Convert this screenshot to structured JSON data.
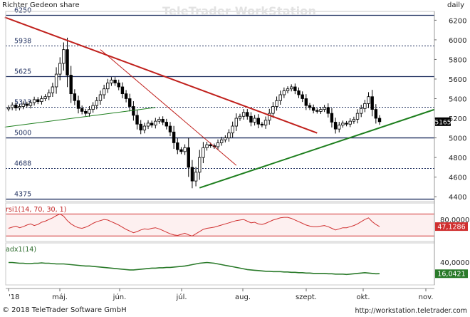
{
  "header": {
    "title": "Richter Gedeon share",
    "interval": "daily",
    "watermark": "TeleTrader WorkStation"
  },
  "footer": {
    "copyright": "© 2018 TeleTrader Software GmbH",
    "url": "http://workstation.teletrader.com"
  },
  "colors": {
    "candle": "#000000",
    "trend_down": "#c0201c",
    "trend_up": "#1e7f1e",
    "level_line": "#1f2f5f",
    "rsi": "#d03030",
    "adx": "#2a7a2a",
    "current_price_box": "#000000",
    "rsi_value_box": "#d03030",
    "adx_value_box": "#2a7a2a"
  },
  "chart_data": [
    {
      "type": "candlestick",
      "title": "Richter Gedeon share",
      "x_tick_labels": [
        "'18",
        "máj.",
        "jún.",
        "júl.",
        "aug.",
        "szept.",
        "okt.",
        "nov."
      ],
      "y_axis_labels": [
        "6200",
        "6000",
        "5800",
        "5600",
        "5400",
        "5200",
        "5000",
        "4800",
        "4600",
        "4400"
      ],
      "ylim": [
        4350,
        6290
      ],
      "level_labels": [
        "6250",
        "5938",
        "5625",
        "5313",
        "5000",
        "4688",
        "4375"
      ],
      "levels": [
        6250,
        5938,
        5625,
        5313,
        5000,
        4688,
        4375
      ],
      "current_price_label": "5165",
      "current_price": 5165,
      "trendlines": [
        {
          "color": "red",
          "from": [
            "'18",
            6230
          ],
          "to": [
            "okt. (early)",
            5050
          ]
        },
        {
          "color": "red",
          "from": [
            "máj. (late)",
            5900
          ],
          "to": [
            "aug. (mid)",
            4720
          ]
        },
        {
          "color": "green",
          "from": [
            "'18",
            5100
          ],
          "to": [
            "júl. (early)",
            5310
          ]
        },
        {
          "color": "green",
          "from": [
            "júl. (late)",
            4490
          ],
          "to": [
            "nov.",
            5290
          ]
        }
      ],
      "closes": [
        5310,
        5335,
        5305,
        5320,
        5345,
        5330,
        5360,
        5390,
        5370,
        5400,
        5420,
        5460,
        5520,
        5650,
        5760,
        5900,
        5640,
        5450,
        5380,
        5300,
        5270,
        5250,
        5290,
        5330,
        5380,
        5440,
        5500,
        5560,
        5590,
        5560,
        5520,
        5450,
        5400,
        5320,
        5230,
        5140,
        5080,
        5120,
        5150,
        5130,
        5170,
        5190,
        5160,
        5120,
        5060,
        4950,
        4880,
        4860,
        4900,
        4700,
        4560,
        4650,
        4800,
        4900,
        4930,
        4920,
        4910,
        4950,
        4980,
        5000,
        5050,
        5120,
        5200,
        5220,
        5260,
        5220,
        5160,
        5200,
        5140,
        5130,
        5180,
        5250,
        5320,
        5380,
        5440,
        5480,
        5500,
        5520,
        5480,
        5440,
        5400,
        5330,
        5310,
        5280,
        5270,
        5290,
        5310,
        5250,
        5160,
        5090,
        5130,
        5150,
        5140,
        5170,
        5190,
        5250,
        5300,
        5350,
        5420,
        5290,
        5200,
        5165
      ]
    },
    {
      "type": "line",
      "name": "rsi1(14, 70, 30, 1)",
      "y_axis_labels": [
        "80,0000"
      ],
      "levels": [
        70,
        30
      ],
      "ylim": [
        20,
        90
      ],
      "current_value_label": "47,1286",
      "values": [
        44,
        46,
        48,
        45,
        47,
        50,
        52,
        49,
        51,
        55,
        57,
        60,
        63,
        67,
        70,
        66,
        58,
        52,
        48,
        45,
        44,
        46,
        49,
        53,
        56,
        58,
        60,
        59,
        56,
        53,
        50,
        46,
        42,
        39,
        36,
        38,
        41,
        43,
        42,
        44,
        45,
        43,
        40,
        37,
        34,
        32,
        31,
        33,
        35,
        32,
        30,
        34,
        38,
        42,
        44,
        45,
        46,
        48,
        50,
        52,
        54,
        56,
        58,
        59,
        60,
        57,
        54,
        55,
        52,
        51,
        53,
        56,
        59,
        61,
        63,
        64,
        64,
        62,
        59,
        56,
        53,
        50,
        48,
        47,
        47,
        48,
        49,
        47,
        44,
        41,
        43,
        45,
        45,
        47,
        49,
        52,
        56,
        60,
        63,
        56,
        51,
        47.13
      ]
    },
    {
      "type": "line",
      "name": "adx1(14)",
      "y_axis_labels": [
        "40,0000"
      ],
      "ylim": [
        0,
        60
      ],
      "current_value_label": "16,0421",
      "values": [
        32,
        32,
        31.5,
        31,
        31,
        30.5,
        30.5,
        31,
        31,
        31.5,
        31,
        31,
        30.5,
        30,
        30,
        30,
        29.5,
        29,
        28.5,
        28,
        27.5,
        27,
        27,
        26.5,
        26,
        25.5,
        25,
        24.5,
        24,
        23.5,
        23,
        22.5,
        22,
        21.5,
        21.5,
        22,
        22.5,
        23,
        23.5,
        24,
        24,
        24.5,
        24.5,
        25,
        25,
        25.5,
        26,
        26.5,
        27,
        28,
        29,
        30,
        31,
        31.5,
        32,
        31.5,
        31,
        30,
        29,
        28,
        27,
        26,
        25,
        24,
        23,
        22,
        21.5,
        21,
        20.5,
        20,
        19.5,
        19.5,
        19,
        19,
        19,
        18.5,
        18.5,
        18,
        18,
        17.5,
        17.5,
        17,
        17,
        16.5,
        16.5,
        16.5,
        16.5,
        16,
        16,
        15.5,
        15.5,
        15.5,
        15,
        15.5,
        16,
        16.5,
        17,
        17.5,
        17,
        16.5,
        16,
        16.04
      ]
    }
  ]
}
